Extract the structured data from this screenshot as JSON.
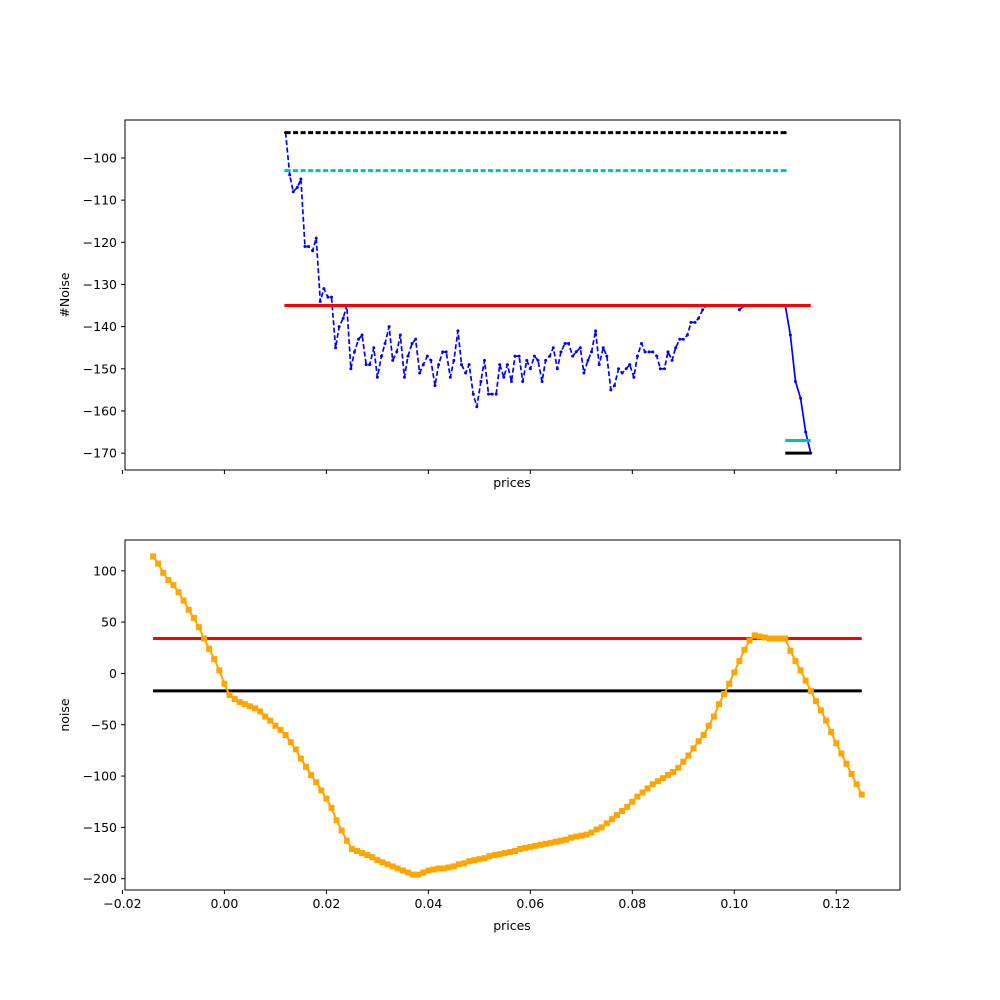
{
  "chart_data": [
    {
      "type": "line",
      "title": "",
      "xlabel": "prices",
      "ylabel": "#Noise",
      "xlim": [
        -0.0195,
        0.1325
      ],
      "ylim": [
        -174,
        -91
      ],
      "x_ticks": [
        -0.02,
        0.0,
        0.02,
        0.04,
        0.06,
        0.08,
        0.1,
        0.12
      ],
      "x_tick_labels_shown": false,
      "y_ticks": [
        -170,
        -160,
        -150,
        -140,
        -130,
        -120,
        -110,
        -100
      ],
      "y_tick_labels": [
        "−170",
        "−160",
        "−150",
        "−140",
        "−130",
        "−120",
        "−110",
        "−100"
      ],
      "grid": false,
      "series": [
        {
          "color": "#0000ff",
          "style": "dashed",
          "marker": "dot",
          "x": [
            0.012,
            0.0128,
            0.0135,
            0.0143,
            0.015,
            0.0158,
            0.0165,
            0.0173,
            0.018,
            0.0188,
            0.0195,
            0.0203,
            0.021,
            0.0218,
            0.0225,
            0.0233,
            0.024,
            0.0248,
            0.0255,
            0.0263,
            0.027,
            0.0278,
            0.0285,
            0.0293,
            0.03,
            0.0308,
            0.0315,
            0.0323,
            0.033,
            0.0338,
            0.0345,
            0.0353,
            0.036,
            0.0368,
            0.0375,
            0.0383,
            0.039,
            0.0398,
            0.0405,
            0.0413,
            0.042,
            0.0428,
            0.0435,
            0.0443,
            0.045,
            0.0458,
            0.0465,
            0.0473,
            0.048,
            0.0488,
            0.0495,
            0.0503,
            0.051,
            0.0518,
            0.0525,
            0.0533,
            0.054,
            0.0548,
            0.0555,
            0.0563,
            0.057,
            0.0578,
            0.0585,
            0.0593,
            0.06,
            0.0608,
            0.0615,
            0.0623,
            0.063,
            0.0638,
            0.0645,
            0.0653,
            0.066,
            0.0668,
            0.0675,
            0.0683,
            0.069,
            0.0698,
            0.0705,
            0.0713,
            0.072,
            0.0728,
            0.0735,
            0.0743,
            0.075,
            0.0758,
            0.0765,
            0.0773,
            0.078,
            0.0788,
            0.0795,
            0.0803,
            0.081,
            0.0818,
            0.0825,
            0.0833,
            0.084,
            0.0848,
            0.0855,
            0.0863,
            0.087,
            0.0878,
            0.0885,
            0.0893,
            0.09,
            0.0908,
            0.0915,
            0.0923,
            0.093,
            0.0938,
            0.0945,
            0.0953,
            0.096,
            0.0968,
            0.0975,
            0.0983,
            0.099,
            0.0998,
            0.1005,
            0.1013,
            0.102,
            0.1028,
            0.1035,
            0.1043,
            0.105,
            0.1058,
            0.1065,
            0.1073,
            0.108,
            0.1088,
            0.1095,
            0.1103
          ],
          "y": [
            -94,
            -104,
            -108,
            -107,
            -105,
            -121,
            -121,
            -122,
            -119,
            -134,
            -131,
            -133,
            -133,
            -145,
            -140,
            -138,
            -135,
            -150,
            -146,
            -143,
            -142,
            -149,
            -149,
            -145,
            -152,
            -147,
            -144,
            -140,
            -148,
            -146,
            -142,
            -152,
            -147,
            -144,
            -143,
            -151,
            -149,
            -147,
            -148,
            -154,
            -149,
            -146,
            -146,
            -152,
            -148,
            -141,
            -149,
            -151,
            -149,
            -156,
            -159,
            -153,
            -148,
            -156,
            -156,
            -156,
            -149,
            -152,
            -149,
            -153,
            -147,
            -147,
            -153,
            -148,
            -150,
            -147,
            -148,
            -153,
            -148,
            -147,
            -145,
            -150,
            -146,
            -144,
            -144,
            -147,
            -146,
            -145,
            -151,
            -148,
            -146,
            -141,
            -149,
            -145,
            -147,
            -155,
            -154,
            -150,
            -151,
            -150,
            -149,
            -152,
            -147,
            -144,
            -146,
            -146,
            -146,
            -147,
            -150,
            -150,
            -146,
            -148,
            -145,
            -143,
            -143,
            -142,
            -139,
            -139,
            -138,
            -136,
            -135,
            -135,
            -135,
            -135,
            -135,
            -135,
            -135,
            -135,
            -135,
            -135,
            -135,
            -135,
            -135,
            -135,
            -135,
            -135,
            -135,
            -135,
            -135,
            -135,
            -135,
            -135
          ]
        },
        {
          "color": "#0000ff",
          "style": "solid",
          "marker": "dot",
          "x": [
            0.101,
            0.102,
            0.103,
            0.104,
            0.105,
            0.106,
            0.107,
            0.108,
            0.109,
            0.11,
            0.111,
            0.112,
            0.113,
            0.114,
            0.115
          ],
          "y": [
            -136,
            -135,
            -135,
            -135,
            -135,
            -135,
            -135,
            -135,
            -135,
            -135,
            -142,
            -153,
            -157,
            -165,
            -170
          ]
        },
        {
          "color": "#000000",
          "style": "dashed",
          "marker": "dot",
          "x": [
            0.012,
            0.11
          ],
          "y": [
            -94,
            -94
          ]
        },
        {
          "color": "#00bfbf",
          "style": "dashed",
          "marker": "dot",
          "x": [
            0.012,
            0.11
          ],
          "y": [
            -103,
            -103
          ]
        },
        {
          "color": "#ff0000",
          "style": "solid",
          "marker": "dot",
          "x": [
            0.012,
            0.11
          ],
          "y": [
            -135,
            -135
          ]
        },
        {
          "color": "#ff0000",
          "style": "solid",
          "marker": "none",
          "x": [
            0.11,
            0.115
          ],
          "y": [
            -135,
            -135
          ]
        },
        {
          "color": "#00bfbf",
          "style": "solid",
          "marker": "none",
          "x": [
            0.11,
            0.115
          ],
          "y": [
            -167,
            -167
          ]
        },
        {
          "color": "#000000",
          "style": "solid",
          "marker": "none",
          "x": [
            0.11,
            0.115
          ],
          "y": [
            -170,
            -170
          ]
        }
      ]
    },
    {
      "type": "line",
      "title": "",
      "xlabel": "prices",
      "ylabel": "noise",
      "xlim": [
        -0.0195,
        0.1325
      ],
      "ylim": [
        -211,
        130
      ],
      "x_ticks": [
        -0.02,
        0.0,
        0.02,
        0.04,
        0.06,
        0.08,
        0.1,
        0.12
      ],
      "x_tick_labels": [
        "−0.02",
        "0.00",
        "0.02",
        "0.04",
        "0.06",
        "0.08",
        "0.10",
        "0.12"
      ],
      "x_tick_labels_shown": true,
      "y_ticks": [
        -200,
        -150,
        -100,
        -50,
        0,
        50,
        100
      ],
      "y_tick_labels": [
        "−200",
        "−150",
        "−100",
        "−50",
        "0",
        "50",
        "100"
      ],
      "grid": false,
      "series": [
        {
          "color": "#ff0000",
          "style": "solid",
          "marker": "none",
          "x": [
            -0.014,
            0.125
          ],
          "y": [
            34,
            34
          ]
        },
        {
          "color": "#000000",
          "style": "solid",
          "marker": "none",
          "x": [
            -0.014,
            0.125
          ],
          "y": [
            -17,
            -17
          ]
        },
        {
          "color": "#ffa500",
          "style": "solid",
          "marker": "square",
          "x": [
            -0.014,
            -0.013,
            -0.012,
            -0.011,
            -0.01,
            -0.009,
            -0.008,
            -0.007,
            -0.006,
            -0.005,
            -0.004,
            -0.003,
            -0.002,
            -0.001,
            0.0,
            0.001,
            0.002,
            0.003,
            0.004,
            0.005,
            0.006,
            0.007,
            0.008,
            0.009,
            0.01,
            0.011,
            0.012,
            0.013,
            0.014,
            0.015,
            0.016,
            0.017,
            0.018,
            0.019,
            0.02,
            0.021,
            0.022,
            0.023,
            0.024,
            0.025,
            0.026,
            0.027,
            0.028,
            0.029,
            0.03,
            0.031,
            0.032,
            0.033,
            0.034,
            0.035,
            0.036,
            0.037,
            0.038,
            0.039,
            0.04,
            0.041,
            0.042,
            0.043,
            0.044,
            0.045,
            0.046,
            0.047,
            0.048,
            0.049,
            0.05,
            0.051,
            0.052,
            0.053,
            0.054,
            0.055,
            0.056,
            0.057,
            0.058,
            0.059,
            0.06,
            0.061,
            0.062,
            0.063,
            0.064,
            0.065,
            0.066,
            0.067,
            0.068,
            0.069,
            0.07,
            0.071,
            0.072,
            0.073,
            0.074,
            0.075,
            0.076,
            0.077,
            0.078,
            0.079,
            0.08,
            0.081,
            0.082,
            0.083,
            0.084,
            0.085,
            0.086,
            0.087,
            0.088,
            0.089,
            0.09,
            0.091,
            0.092,
            0.093,
            0.094,
            0.095,
            0.096,
            0.097,
            0.098,
            0.099,
            0.1,
            0.101,
            0.102,
            0.103,
            0.104,
            0.105,
            0.106,
            0.107,
            0.108,
            0.109,
            0.11,
            0.111,
            0.112,
            0.113,
            0.114,
            0.115,
            0.116,
            0.117,
            0.118,
            0.119,
            0.12,
            0.121,
            0.122,
            0.123,
            0.124,
            0.125
          ],
          "y": [
            114,
            107,
            98,
            91,
            86,
            79,
            71,
            62,
            54,
            45,
            34,
            24,
            14,
            3,
            -10,
            -21,
            -25,
            -28,
            -30,
            -32,
            -34,
            -37,
            -42,
            -46,
            -51,
            -55,
            -60,
            -67,
            -74,
            -83,
            -91,
            -99,
            -106,
            -114,
            -122,
            -131,
            -143,
            -153,
            -163,
            -171,
            -173,
            -175,
            -177,
            -179,
            -182,
            -184,
            -186,
            -188,
            -190,
            -192,
            -194,
            -196,
            -196,
            -194,
            -192,
            -191,
            -190,
            -190,
            -189,
            -188,
            -186,
            -185,
            -183,
            -182,
            -181,
            -180,
            -178,
            -177,
            -176,
            -175,
            -174,
            -173,
            -171,
            -170,
            -169,
            -168,
            -167,
            -166,
            -165,
            -164,
            -163,
            -162,
            -160,
            -159,
            -158,
            -157,
            -155,
            -152,
            -150,
            -146,
            -142,
            -138,
            -134,
            -130,
            -125,
            -120,
            -116,
            -112,
            -108,
            -105,
            -102,
            -99,
            -96,
            -92,
            -86,
            -80,
            -73,
            -66,
            -60,
            -51,
            -42,
            -30,
            -20,
            -10,
            1,
            12,
            23,
            32,
            37,
            36,
            35,
            34,
            34,
            34,
            34,
            22,
            12,
            3,
            -7,
            -17,
            -27,
            -36,
            -46,
            -57,
            -68,
            -78,
            -88,
            -98,
            -108,
            -118
          ]
        }
      ]
    }
  ]
}
